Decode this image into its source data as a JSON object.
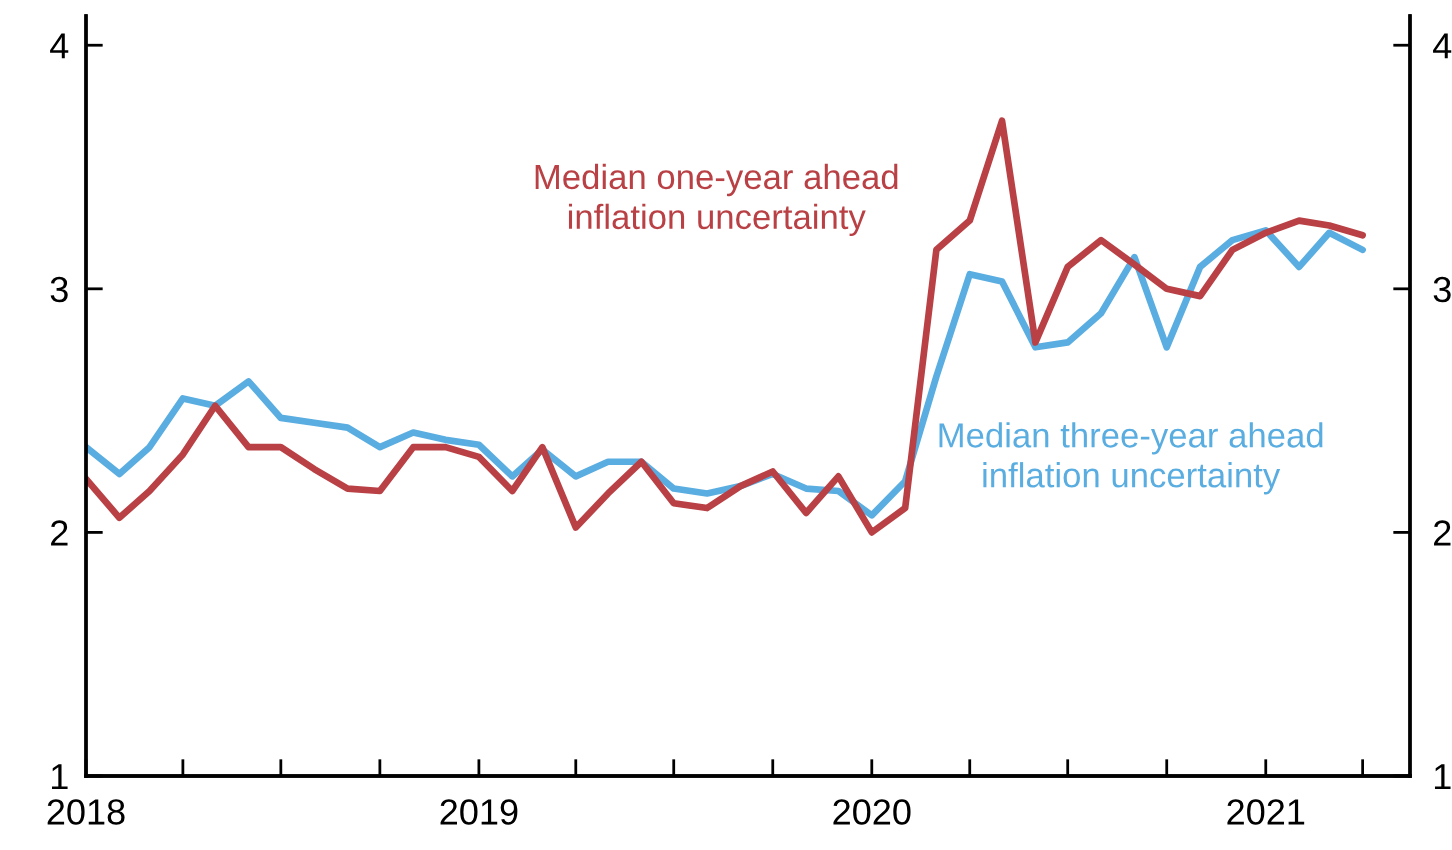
{
  "chart_data": {
    "type": "line",
    "x": [
      "2018-01",
      "2018-02",
      "2018-03",
      "2018-04",
      "2018-05",
      "2018-06",
      "2018-07",
      "2018-08",
      "2018-09",
      "2018-10",
      "2018-11",
      "2018-12",
      "2019-01",
      "2019-02",
      "2019-03",
      "2019-04",
      "2019-05",
      "2019-06",
      "2019-07",
      "2019-08",
      "2019-09",
      "2019-10",
      "2019-11",
      "2019-12",
      "2020-01",
      "2020-02",
      "2020-03",
      "2020-04",
      "2020-05",
      "2020-06",
      "2020-07",
      "2020-08",
      "2020-09",
      "2020-10",
      "2020-11",
      "2020-12",
      "2021-01",
      "2021-02",
      "2021-03",
      "2021-04"
    ],
    "series": [
      {
        "name": "Median three-year ahead inflation uncertainty",
        "color": "#5aade0",
        "values": [
          2.35,
          2.24,
          2.35,
          2.55,
          2.52,
          2.62,
          2.47,
          2.45,
          2.43,
          2.35,
          2.41,
          2.38,
          2.36,
          2.23,
          2.34,
          2.23,
          2.29,
          2.29,
          2.18,
          2.16,
          2.19,
          2.24,
          2.18,
          2.17,
          2.07,
          2.21,
          2.64,
          3.06,
          3.03,
          2.76,
          2.78,
          2.9,
          3.13,
          2.76,
          3.09,
          3.2,
          3.24,
          3.09,
          3.23,
          3.16
        ]
      },
      {
        "name": "Median one-year ahead inflation uncertainty",
        "color": "#b94044",
        "values": [
          2.22,
          2.06,
          2.17,
          2.32,
          2.52,
          2.35,
          2.35,
          2.26,
          2.18,
          2.17,
          2.35,
          2.35,
          2.31,
          2.17,
          2.35,
          2.02,
          2.16,
          2.29,
          2.12,
          2.1,
          2.19,
          2.25,
          2.08,
          2.23,
          2.0,
          2.1,
          3.16,
          3.28,
          3.69,
          2.78,
          3.09,
          3.2,
          3.1,
          3.0,
          2.97,
          3.16,
          3.23,
          3.28,
          3.26,
          3.22
        ]
      }
    ],
    "xlim": [
      "2018-01",
      "2021-05-15"
    ],
    "xticks": [
      {
        "value": "2018-01",
        "label": "2018"
      },
      {
        "value": "2018-04",
        "label": null
      },
      {
        "value": "2018-07",
        "label": null
      },
      {
        "value": "2018-10",
        "label": null
      },
      {
        "value": "2019-01",
        "label": "2019"
      },
      {
        "value": "2019-04",
        "label": null
      },
      {
        "value": "2019-07",
        "label": null
      },
      {
        "value": "2019-10",
        "label": null
      },
      {
        "value": "2020-01",
        "label": "2020"
      },
      {
        "value": "2020-04",
        "label": null
      },
      {
        "value": "2020-07",
        "label": null
      },
      {
        "value": "2020-10",
        "label": null
      },
      {
        "value": "2021-01",
        "label": "2021"
      },
      {
        "value": "2021-04",
        "label": null
      }
    ],
    "ylim": [
      1,
      4.12
    ],
    "yticks": [
      1,
      2,
      3,
      4
    ],
    "y2lim": [
      1,
      4.12
    ],
    "y2ticks": [
      1,
      2,
      3,
      4
    ],
    "grid": false,
    "legend": false,
    "marker": "none",
    "line_style": "solid"
  }
}
